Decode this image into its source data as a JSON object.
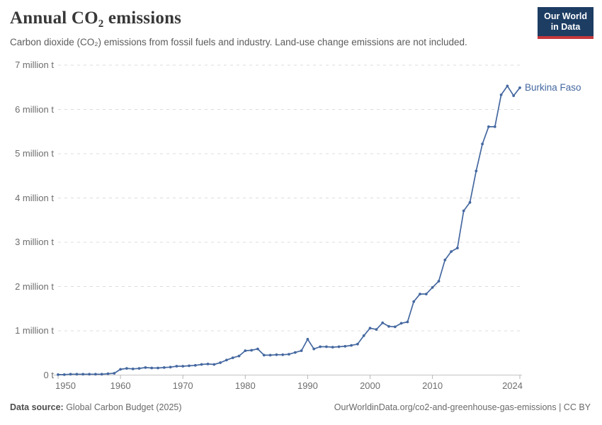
{
  "header": {
    "title": "Annual CO₂ emissions",
    "subtitle": "Carbon dioxide (CO₂) emissions from fossil fuels and industry. Land-use change emissions are not included."
  },
  "logo": {
    "line1": "Our World",
    "line2": "in Data",
    "bg_color": "#1d3d63",
    "accent_color": "#c5383c"
  },
  "chart_data": {
    "type": "line",
    "title": "Annual CO₂ emissions",
    "entity": "Burkina Faso",
    "unit": "million tonnes (t)",
    "line_color": "#4568a0",
    "grid": "horizontal dashed",
    "legend_position": "end-of-line label",
    "ylim_million_t": [
      0,
      7
    ],
    "xlim": [
      1950,
      2024
    ],
    "y_ticks": [
      {
        "value": 0,
        "label": "0 t"
      },
      {
        "value": 1,
        "label": "1 million t"
      },
      {
        "value": 2,
        "label": "2 million t"
      },
      {
        "value": 3,
        "label": "3 million t"
      },
      {
        "value": 4,
        "label": "4 million t"
      },
      {
        "value": 5,
        "label": "5 million t"
      },
      {
        "value": 6,
        "label": "6 million t"
      },
      {
        "value": 7,
        "label": "7 million t"
      }
    ],
    "x_ticks": [
      {
        "value": 1950,
        "label": "1950",
        "align": "left"
      },
      {
        "value": 1960,
        "label": "1960",
        "align": "center"
      },
      {
        "value": 1970,
        "label": "1970",
        "align": "center"
      },
      {
        "value": 1980,
        "label": "1980",
        "align": "center"
      },
      {
        "value": 1990,
        "label": "1990",
        "align": "center"
      },
      {
        "value": 2000,
        "label": "2000",
        "align": "center"
      },
      {
        "value": 2010,
        "label": "2010",
        "align": "center"
      },
      {
        "value": 2024,
        "label": "2024",
        "align": "right"
      }
    ],
    "years": [
      1950,
      1951,
      1952,
      1953,
      1954,
      1955,
      1956,
      1957,
      1958,
      1959,
      1960,
      1961,
      1962,
      1963,
      1964,
      1965,
      1966,
      1967,
      1968,
      1969,
      1970,
      1971,
      1972,
      1973,
      1974,
      1975,
      1976,
      1977,
      1978,
      1979,
      1980,
      1981,
      1982,
      1983,
      1984,
      1985,
      1986,
      1987,
      1988,
      1989,
      1990,
      1991,
      1992,
      1993,
      1994,
      1995,
      1996,
      1997,
      1998,
      1999,
      2000,
      2001,
      2002,
      2003,
      2004,
      2005,
      2006,
      2007,
      2008,
      2009,
      2010,
      2011,
      2012,
      2013,
      2014,
      2015,
      2016,
      2017,
      2018,
      2019,
      2020,
      2021,
      2022,
      2023,
      2024
    ],
    "values_million_t": [
      0.01,
      0.01,
      0.02,
      0.02,
      0.02,
      0.02,
      0.02,
      0.02,
      0.03,
      0.04,
      0.13,
      0.15,
      0.14,
      0.15,
      0.17,
      0.16,
      0.16,
      0.17,
      0.18,
      0.2,
      0.2,
      0.21,
      0.22,
      0.24,
      0.25,
      0.24,
      0.28,
      0.34,
      0.39,
      0.43,
      0.55,
      0.56,
      0.59,
      0.45,
      0.45,
      0.46,
      0.46,
      0.47,
      0.51,
      0.55,
      0.81,
      0.59,
      0.64,
      0.64,
      0.63,
      0.64,
      0.65,
      0.67,
      0.7,
      0.89,
      1.06,
      1.03,
      1.18,
      1.1,
      1.09,
      1.17,
      1.2,
      1.66,
      1.83,
      1.83,
      1.98,
      2.12,
      2.6,
      2.79,
      2.87,
      3.71,
      3.9,
      4.61,
      5.22,
      5.61,
      5.61,
      6.33,
      6.53,
      6.31,
      6.49
    ]
  },
  "footer": {
    "source_label": "Data source:",
    "source_text": " Global Carbon Budget (2025)",
    "right_text": "OurWorldinData.org/co2-and-greenhouse-gas-emissions | CC BY"
  }
}
